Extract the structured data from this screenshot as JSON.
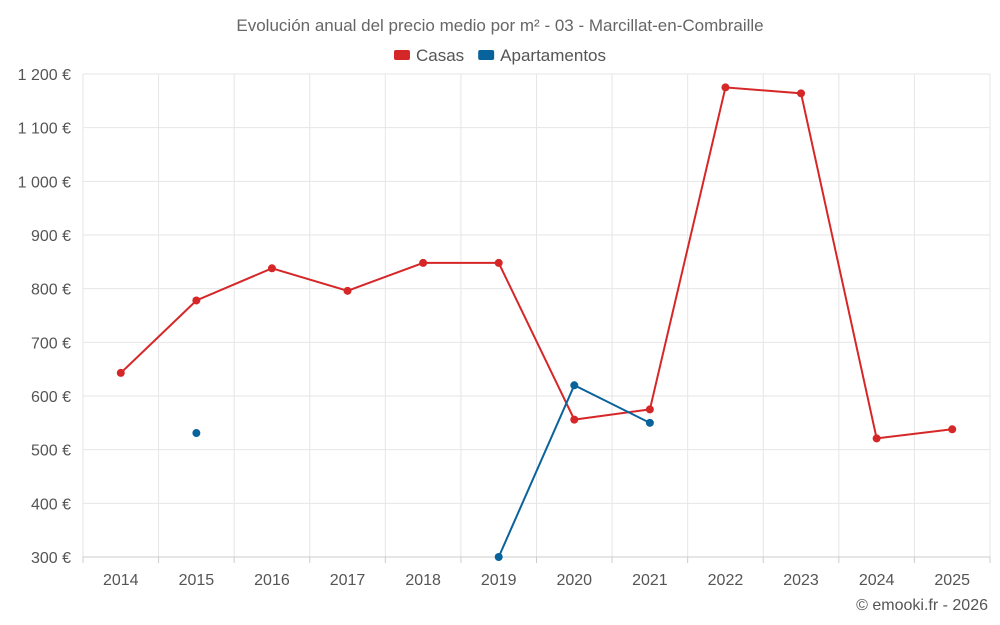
{
  "chart_data": {
    "type": "line",
    "title": "Evolución anual del precio medio por m² - 03 - Marcillat-en-Combraille",
    "xlabel": "",
    "ylabel": "",
    "categories": [
      "2014",
      "2015",
      "2016",
      "2017",
      "2018",
      "2019",
      "2020",
      "2021",
      "2022",
      "2023",
      "2024",
      "2025"
    ],
    "ylim": [
      300,
      1200
    ],
    "yticks": [
      300,
      400,
      500,
      600,
      700,
      800,
      900,
      1000,
      1100,
      1200
    ],
    "ytick_labels": [
      "300 €",
      "400 €",
      "500 €",
      "600 €",
      "700 €",
      "800 €",
      "900 €",
      "1 000 €",
      "1 100 €",
      "1 200 €"
    ],
    "grid": true,
    "legend_position": "top-center",
    "series": [
      {
        "name": "Casas",
        "color": "#d62728",
        "values": [
          643,
          778,
          838,
          796,
          848,
          848,
          556,
          575,
          1175,
          1164,
          521,
          538
        ]
      },
      {
        "name": "Apartamentos",
        "color": "#08639c",
        "values": [
          null,
          531,
          null,
          null,
          null,
          300,
          620,
          550,
          null,
          null,
          null,
          null
        ]
      }
    ]
  },
  "credit": "© emooki.fr - 2026"
}
